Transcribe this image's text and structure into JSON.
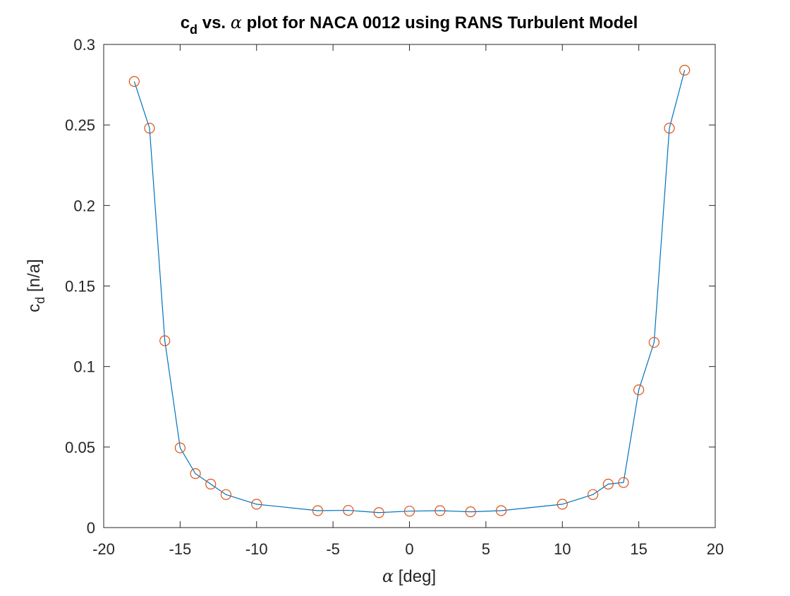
{
  "chart_data": {
    "type": "line",
    "title": {
      "pre": "c",
      "sub": "d",
      "mid": " vs. ",
      "greek": "α",
      "post": " plot for NACA 0012 using RANS Turbulent Model"
    },
    "xlabel": {
      "greek": "α",
      "rest": " [deg]"
    },
    "ylabel": {
      "base": "c",
      "sub": "d",
      "rest": " [n/a]"
    },
    "xlim": [
      -20,
      20
    ],
    "ylim": [
      0,
      0.3
    ],
    "xticks": [
      -20,
      -15,
      -10,
      -5,
      0,
      5,
      10,
      15,
      20
    ],
    "yticks": [
      0,
      0.05,
      0.1,
      0.15,
      0.2,
      0.25,
      0.3
    ],
    "xtick_labels": [
      "-20",
      "-15",
      "-10",
      "-5",
      "0",
      "5",
      "10",
      "15",
      "20"
    ],
    "ytick_labels": [
      "0",
      "0.05",
      "0.1",
      "0.15",
      "0.2",
      "0.25",
      "0.3"
    ],
    "grid": false,
    "series": [
      {
        "style": "line with circle markers",
        "line_color": "#0072BD",
        "marker_color": "#D95319",
        "x": [
          -18,
          -17,
          -16,
          -15,
          -14,
          -13,
          -12,
          -10,
          -6,
          -4,
          -2,
          0,
          2,
          4,
          6,
          10,
          12,
          13,
          14,
          15,
          16,
          17,
          18
        ],
        "y": [
          0.277,
          0.248,
          0.116,
          0.0495,
          0.0335,
          0.027,
          0.0205,
          0.0145,
          0.0105,
          0.0107,
          0.0093,
          0.0102,
          0.0105,
          0.0098,
          0.0105,
          0.0145,
          0.0205,
          0.027,
          0.028,
          0.0855,
          0.115,
          0.248,
          0.284
        ]
      }
    ]
  }
}
